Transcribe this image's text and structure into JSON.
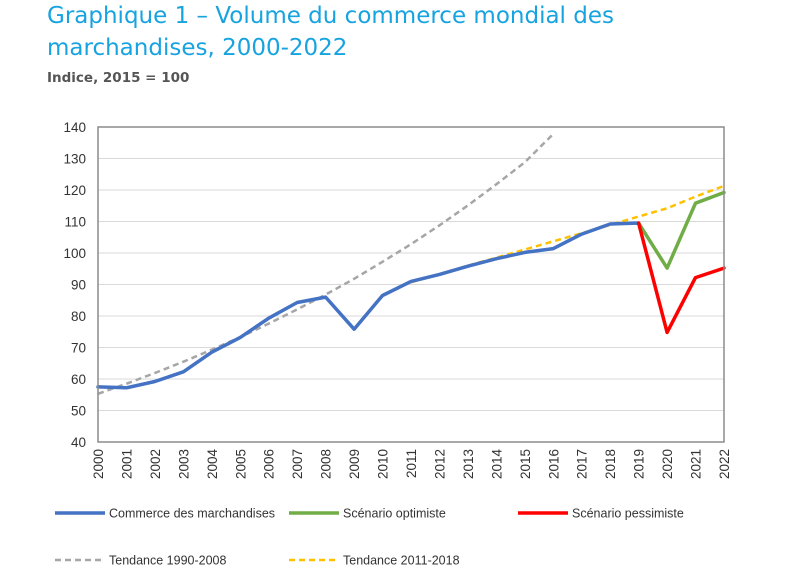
{
  "header": {
    "title": "Graphique 1 – Volume du commerce mondial des marchandises, 2000-2022",
    "subtitle": "Indice, 2015 = 100"
  },
  "colors": {
    "title": "#16A3E0",
    "commerce": "#4472C4",
    "optimiste": "#70AD47",
    "pessimiste": "#FF0000",
    "tendance_1990_2008": "#A6A6A6",
    "tendance_2011_2018": "#FFC000",
    "grid": "#D9D9D9",
    "frame": "#8C8C8C"
  },
  "chart_data": {
    "type": "line",
    "ylim": [
      40,
      140
    ],
    "yticks": [
      40,
      50,
      60,
      70,
      80,
      90,
      100,
      110,
      120,
      130,
      140
    ],
    "categories": [
      "2000",
      "2001",
      "2002",
      "2003",
      "2004",
      "2005",
      "2006",
      "2007",
      "2008",
      "2009",
      "2010",
      "2011",
      "2012",
      "2013",
      "2014",
      "2015",
      "2016",
      "2017",
      "2018",
      "2019",
      "2020",
      "2021",
      "2022"
    ],
    "grid": "horizontal",
    "legend": "bottom",
    "series": [
      {
        "key": "commerce",
        "name": "Commerce des marchandises",
        "style": "solid",
        "points": [
          [
            2000,
            57.5
          ],
          [
            2001,
            57.2
          ],
          [
            2002,
            59.2
          ],
          [
            2003,
            62.3
          ],
          [
            2004,
            68.5
          ],
          [
            2005,
            73.2
          ],
          [
            2006,
            79.3
          ],
          [
            2007,
            84.3
          ],
          [
            2008,
            86.0
          ],
          [
            2009,
            75.8
          ],
          [
            2010,
            86.5
          ],
          [
            2011,
            91.0
          ],
          [
            2012,
            93.2
          ],
          [
            2013,
            95.8
          ],
          [
            2014,
            98.2
          ],
          [
            2015,
            100.2
          ],
          [
            2016,
            101.4
          ],
          [
            2017,
            106.0
          ],
          [
            2018,
            109.2
          ],
          [
            2019,
            109.5
          ]
        ]
      },
      {
        "key": "optimiste",
        "name": "Scénario optimiste",
        "style": "solid",
        "points": [
          [
            2019,
            109.5
          ],
          [
            2020,
            95.2
          ],
          [
            2021,
            115.8
          ],
          [
            2022,
            119.2
          ]
        ]
      },
      {
        "key": "pessimiste",
        "name": "Scénario pessimiste",
        "style": "solid",
        "points": [
          [
            2019,
            109.5
          ],
          [
            2020,
            74.8
          ],
          [
            2021,
            92.2
          ],
          [
            2022,
            95.2
          ]
        ]
      },
      {
        "key": "tendance_1990_2008",
        "name": "Tendance 1990-2008",
        "style": "dashed",
        "points": [
          [
            2000,
            55.3
          ],
          [
            2001,
            58.5
          ],
          [
            2002,
            61.9
          ],
          [
            2003,
            65.5
          ],
          [
            2004,
            69.3
          ],
          [
            2005,
            73.3
          ],
          [
            2006,
            77.6
          ],
          [
            2007,
            82.1
          ],
          [
            2008,
            86.8
          ],
          [
            2009,
            91.8
          ],
          [
            2010,
            97.2
          ],
          [
            2011,
            102.8
          ],
          [
            2012,
            108.8
          ],
          [
            2013,
            115.1
          ],
          [
            2014,
            121.8
          ],
          [
            2015,
            128.8
          ],
          [
            2016,
            137.8
          ]
        ]
      },
      {
        "key": "tendance_2011_2018",
        "name": "Tendance 2011-2018",
        "style": "dashed",
        "points": [
          [
            2011,
            90.7
          ],
          [
            2012,
            93.3
          ],
          [
            2013,
            96.0
          ],
          [
            2014,
            98.5
          ],
          [
            2015,
            101.1
          ],
          [
            2016,
            103.7
          ],
          [
            2017,
            106.3
          ],
          [
            2018,
            108.9
          ],
          [
            2019,
            111.6
          ],
          [
            2020,
            114.2
          ],
          [
            2021,
            117.9
          ],
          [
            2022,
            121.3
          ]
        ]
      }
    ]
  }
}
